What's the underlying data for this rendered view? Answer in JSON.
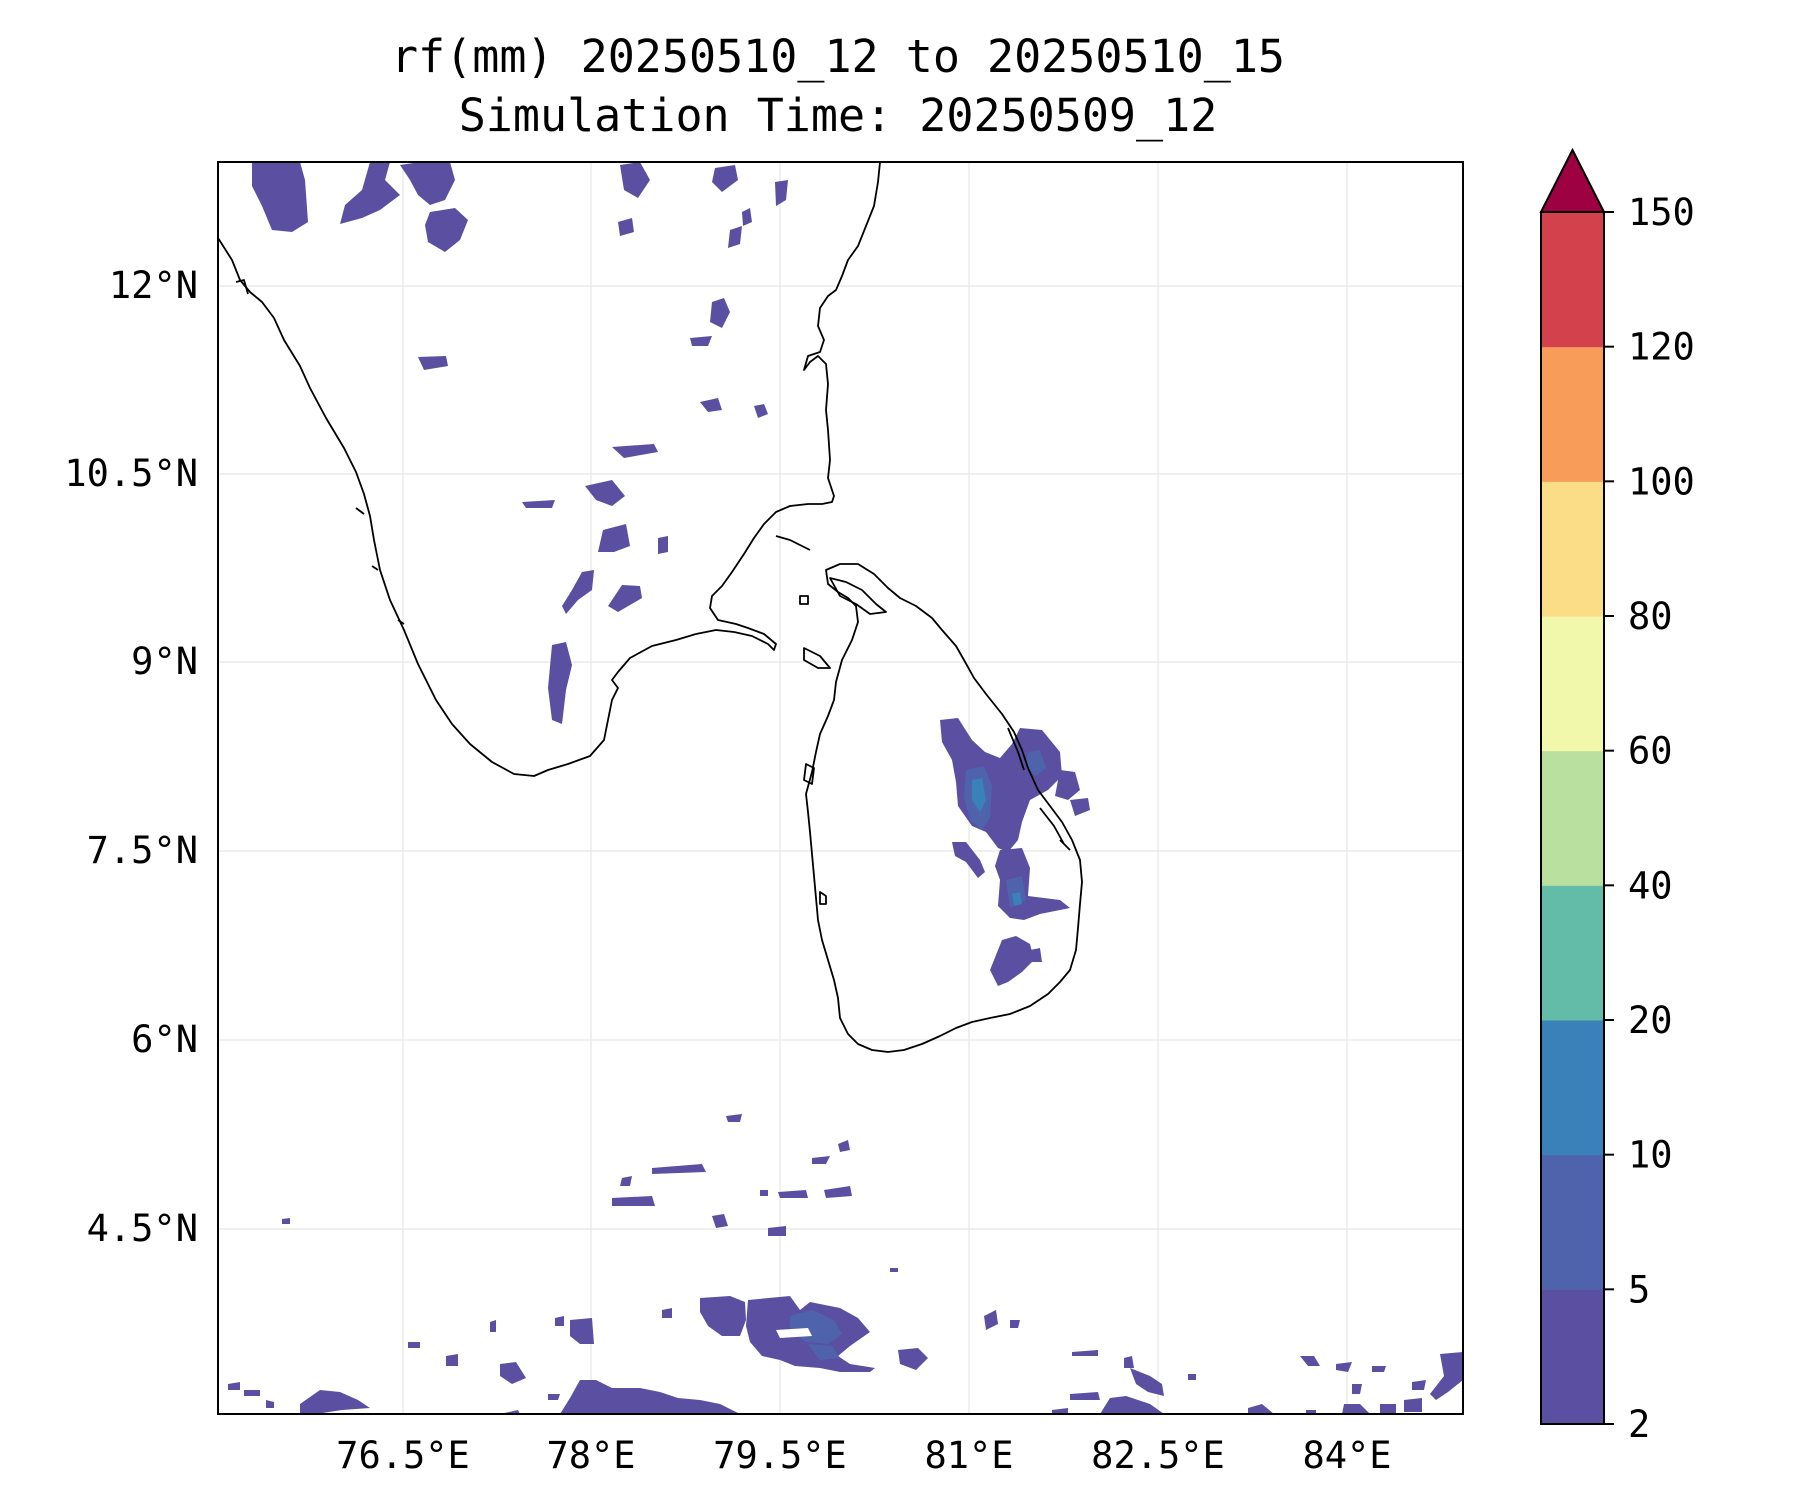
{
  "title": {
    "line1": "rf(mm) 20250510_12 to 20250510_15",
    "line2": "Simulation Time: 20250509_12"
  },
  "map": {
    "lon_range": [
      75.0,
      84.9
    ],
    "lat_range": [
      3.0,
      13.0
    ],
    "lat_ticks": [
      "12°N",
      "10.5°N",
      "9°N",
      "7.5°N",
      "6°N",
      "4.5°N"
    ],
    "lon_ticks": [
      "76.5°E",
      "78°E",
      "79.5°E",
      "81°E",
      "82.5°E",
      "84°E"
    ],
    "gridlines": true,
    "coastline_color": "#000000",
    "regions": [
      "Southern India",
      "Sri Lanka"
    ]
  },
  "colorbar": {
    "levels": [
      "2",
      "5",
      "10",
      "20",
      "40",
      "60",
      "80",
      "100",
      "120",
      "150"
    ],
    "colors": [
      "#5b4fa1",
      "#4f63ad",
      "#3a80b9",
      "#62bca8",
      "#b9e09e",
      "#f2f8ab",
      "#fbdd88",
      "#f89c5a",
      "#d3414d",
      "#9c0142"
    ],
    "extend": "max",
    "extend_color": "#9e0142"
  },
  "rainfall_field": {
    "dominant_class_mm": "2-5",
    "max_class_mm": "10-20",
    "max_location": "eastern Sri Lanka"
  }
}
